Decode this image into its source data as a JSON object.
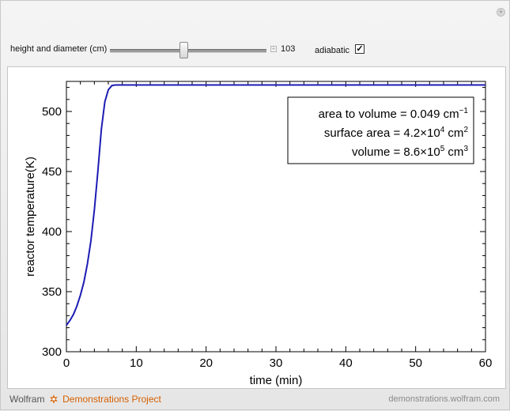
{
  "controls": {
    "slider_label": "height and diameter (cm)",
    "slider_value": "103",
    "slider_fraction": 0.47,
    "checkbox_label": "adiabatic",
    "checkbox_checked": true,
    "checkbox_mark": "✓"
  },
  "legend": {
    "line1": {
      "prefix": "area to volume = 0.049 cm",
      "sup": "−1",
      "suffix": ""
    },
    "line2": {
      "prefix": "surface area = 4.2×10",
      "sup": "4",
      "mid": " cm",
      "sup2": "2"
    },
    "line3": {
      "prefix": "volume = 8.6×10",
      "sup": "5",
      "mid": " cm",
      "sup2": "3"
    }
  },
  "chart_data": {
    "type": "line",
    "xlabel": "time (min)",
    "ylabel": "reactor temperature(K)",
    "xlim": [
      0,
      60
    ],
    "ylim": [
      300,
      525
    ],
    "xticks": [
      0,
      10,
      20,
      30,
      40,
      50,
      60
    ],
    "yticks": [
      300,
      350,
      400,
      450,
      500
    ],
    "series_color": "#1c1cb4",
    "series": [
      {
        "x": [
          0,
          0.5,
          1,
          1.5,
          2,
          2.5,
          3,
          3.5,
          4,
          4.5,
          5,
          5.5,
          6,
          6.5,
          7,
          7.5,
          8,
          10,
          20,
          30,
          40,
          50,
          60
        ],
        "y": [
          322,
          326,
          331,
          338,
          347,
          358,
          373,
          392,
          418,
          450,
          485,
          508,
          518,
          521.5,
          522,
          522,
          522,
          522,
          522,
          522,
          522,
          522,
          522
        ]
      }
    ]
  },
  "footer": {
    "brand_left": "Wolfram",
    "brand_right": "Demonstrations Project",
    "url": "demonstrations.wolfram.com"
  }
}
